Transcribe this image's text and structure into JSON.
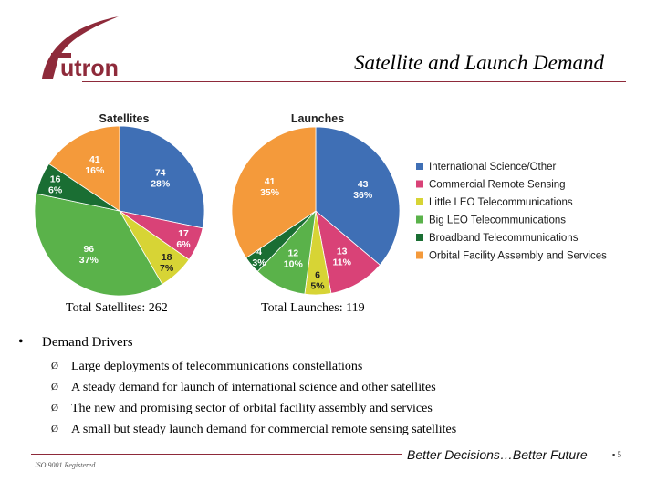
{
  "header": {
    "logo_text": "utron",
    "title": "Satellite and Launch Demand"
  },
  "legend": [
    {
      "label": "International Science/Other",
      "color": "#3f6fb5"
    },
    {
      "label": "Commercial Remote Sensing",
      "color": "#d94277"
    },
    {
      "label": "Little LEO Telecommunications",
      "color": "#d7d435"
    },
    {
      "label": "Big LEO Telecommunications",
      "color": "#5ab24a"
    },
    {
      "label": "Broadband Telecommunications",
      "color": "#1a6e33"
    },
    {
      "label": "Orbital Facility Assembly and Services",
      "color": "#f49a3b"
    }
  ],
  "chart_data": [
    {
      "type": "pie",
      "title": "Satellites",
      "slices": [
        {
          "category": "International Science/Other",
          "value": 74,
          "percent": "28%",
          "label_dark": false
        },
        {
          "category": "Commercial Remote Sensing",
          "value": 17,
          "percent": "6%",
          "label_dark": false
        },
        {
          "category": "Little LEO Telecommunications",
          "value": 18,
          "percent": "7%",
          "label_dark": true
        },
        {
          "category": "Big LEO Telecommunications",
          "value": 96,
          "percent": "37%",
          "label_dark": false
        },
        {
          "category": "Broadband Telecommunications",
          "value": 16,
          "percent": "6%",
          "label_dark": false
        },
        {
          "category": "Orbital Facility Assembly and Services",
          "value": 41,
          "percent": "16%",
          "label_dark": false
        }
      ]
    },
    {
      "type": "pie",
      "title": "Launches",
      "slices": [
        {
          "category": "International Science/Other",
          "value": 43,
          "percent": "36%",
          "label_dark": false
        },
        {
          "category": "Commercial Remote Sensing",
          "value": 13,
          "percent": "11%",
          "label_dark": false
        },
        {
          "category": "Little LEO Telecommunications",
          "value": 6,
          "percent": "5%",
          "label_dark": true
        },
        {
          "category": "Big LEO Telecommunications",
          "value": 12,
          "percent": "10%",
          "label_dark": false
        },
        {
          "category": "Broadband Telecommunications",
          "value": 4,
          "percent": "3%",
          "label_dark": false
        },
        {
          "category": "Orbital Facility Assembly and Services",
          "value": 41,
          "percent": "35%",
          "label_dark": false
        }
      ]
    }
  ],
  "captions": {
    "satellites_total": "Total Satellites: 262",
    "launches_total": "Total Launches: 119"
  },
  "drivers": {
    "bullet": "•",
    "heading": "Demand Drivers",
    "arrow": "Ø",
    "items": [
      "Large deployments of telecommunications constellations",
      "A steady demand for launch of international science and other satellites",
      "The new and promising sector of orbital facility assembly and services",
      "A small but steady launch demand for commercial remote sensing satellites"
    ]
  },
  "footer": {
    "iso": "ISO 9001 Registered",
    "tagline": "Better Decisions…Better Future",
    "page": "▪ 5"
  }
}
